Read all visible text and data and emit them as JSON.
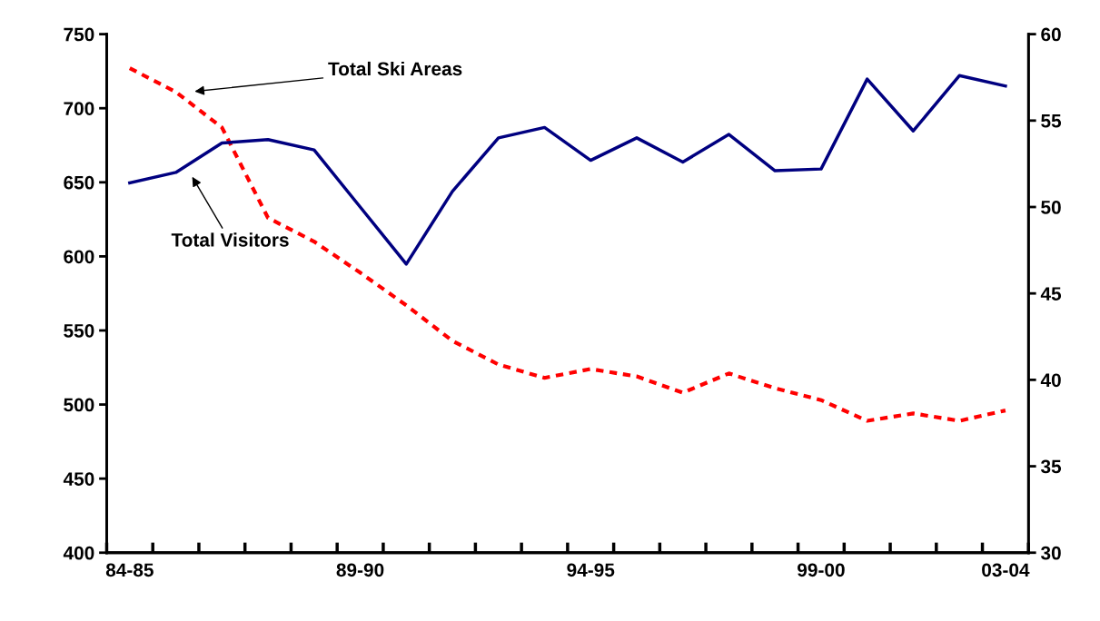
{
  "chart_data": {
    "type": "line",
    "categories": [
      "84-85",
      null,
      null,
      null,
      null,
      "89-90",
      null,
      null,
      null,
      null,
      "94-95",
      null,
      null,
      null,
      null,
      "99-00",
      null,
      null,
      null,
      "03-04"
    ],
    "series": [
      {
        "color": "#ff0000",
        "line_style": "dashed",
        "values": [
          727,
          711,
          687,
          626,
          610,
          589,
          567,
          543,
          527,
          518,
          524,
          519,
          508,
          521,
          511,
          503,
          489,
          494,
          489,
          496
        ]
      },
      {
        "color": "#000080",
        "line_style": "solid",
        "axis": "y2",
        "values": [
          51.4,
          52.0,
          53.7,
          53.9,
          53.3,
          50.0,
          46.7,
          50.9,
          54.0,
          54.6,
          52.7,
          54.0,
          52.6,
          54.2,
          52.1,
          52.2,
          57.4,
          54.4,
          57.6,
          57.0
        ]
      }
    ],
    "ylim": [
      400,
      750
    ],
    "yticks": [
      400,
      450,
      500,
      550,
      600,
      650,
      700,
      750
    ],
    "y2lim": [
      30,
      60
    ],
    "y2ticks": [
      30,
      35,
      40,
      45,
      50,
      55,
      60
    ],
    "annotations": [
      "Total Ski Areas",
      "Total Visitors"
    ],
    "grid": false,
    "legend": false,
    "marker": "none"
  }
}
